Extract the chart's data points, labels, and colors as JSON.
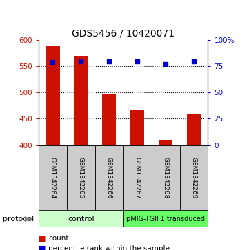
{
  "title": "GDS5456 / 10420071",
  "samples": [
    "GSM1342264",
    "GSM1342265",
    "GSM1342266",
    "GSM1342267",
    "GSM1342268",
    "GSM1342269"
  ],
  "counts": [
    588,
    570,
    498,
    467,
    410,
    458
  ],
  "percentile_ranks": [
    79,
    80,
    80,
    80,
    77,
    80
  ],
  "ylim_left": [
    400,
    600
  ],
  "ylim_right": [
    0,
    100
  ],
  "yticks_left": [
    400,
    450,
    500,
    550,
    600
  ],
  "yticks_right": [
    0,
    25,
    50,
    75,
    100
  ],
  "bar_color": "#cc1100",
  "dot_color": "#0000cc",
  "control_samples_count": 3,
  "transduced_samples_count": 3,
  "control_label": "control",
  "transduced_label": "pMIG-TGIF1 transduced",
  "protocol_label": "protocol",
  "legend_count": "count",
  "legend_percentile": "percentile rank within the sample",
  "control_color": "#ccffcc",
  "transduced_color": "#66ff66",
  "sample_box_color": "#cccccc",
  "base_value": 400,
  "bar_width": 0.5
}
